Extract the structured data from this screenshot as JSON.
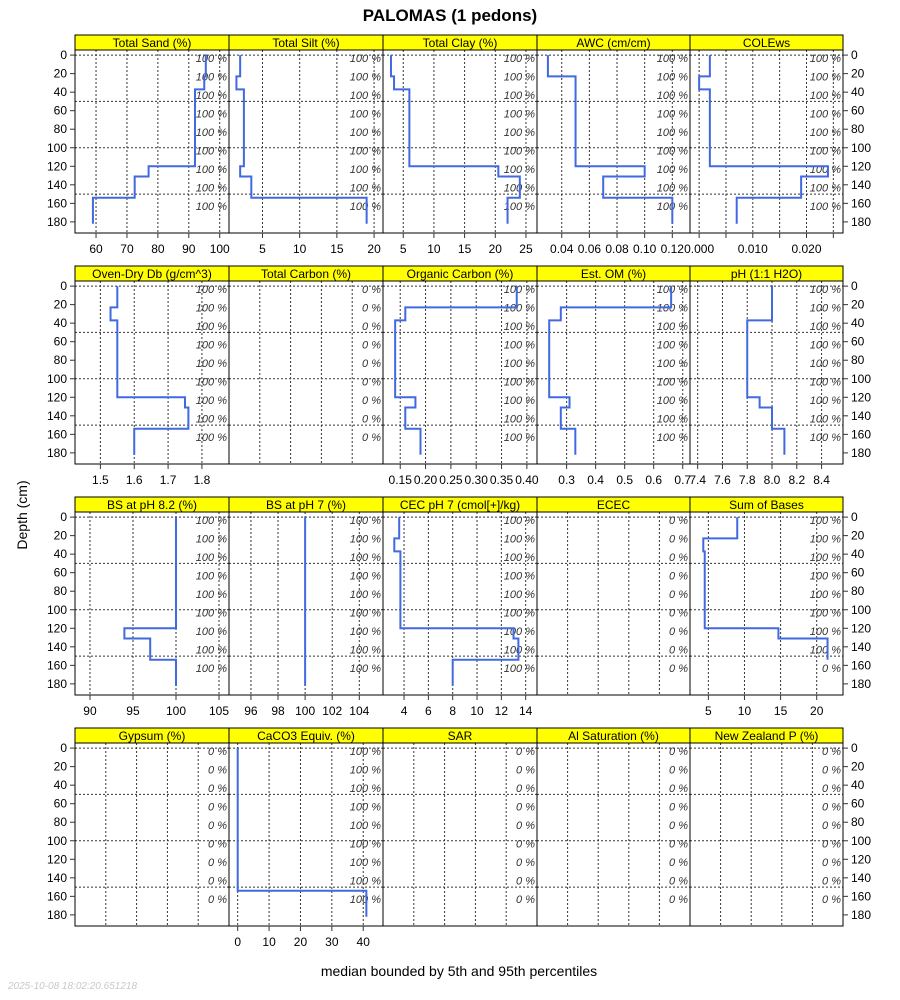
{
  "chart_data": {
    "type": "line",
    "title": "PALOMAS (1 pedons)",
    "xlabel": "median bounded by 5th and 95th percentiles",
    "ylabel": "Depth (cm)",
    "timestamp": "2025-10-08 18:02:20.651218",
    "ylim": [
      192,
      -5.5
    ],
    "depth_ticks": [
      0,
      20,
      40,
      60,
      80,
      100,
      120,
      140,
      160,
      180
    ],
    "depth_grid": [
      0,
      50,
      100,
      150
    ],
    "horizons": [
      [
        0,
        23
      ],
      [
        23,
        37
      ],
      [
        37,
        120
      ],
      [
        120,
        131
      ],
      [
        131,
        154
      ],
      [
        154,
        182
      ]
    ],
    "line_color": "#4169E1",
    "strip_color": "#FFFF00",
    "panels": [
      {
        "name": "Total Sand (%)",
        "xlim": [
          53.2,
          103
        ],
        "ticks": [
          60,
          70,
          80,
          90,
          100
        ],
        "tick_labels": [
          "60",
          "70",
          "80",
          "90",
          "100"
        ],
        "values": [
          95.5,
          95,
          92,
          77,
          72.5,
          59
        ],
        "completeness": [
          "100 %",
          "100 %",
          "100 %",
          "100 %",
          "100 %",
          "100 %",
          "100 %",
          "100 %",
          "100 %"
        ]
      },
      {
        "name": "Total Silt (%)",
        "xlim": [
          0.5,
          21.2
        ],
        "ticks": [
          5,
          10,
          15,
          20
        ],
        "tick_labels": [
          "5",
          "10",
          "15",
          "20"
        ],
        "values": [
          2,
          1.5,
          2.5,
          2,
          3.5,
          19
        ],
        "completeness": [
          "100 %",
          "100 %",
          "100 %",
          "100 %",
          "100 %",
          "100 %",
          "100 %",
          "100 %",
          "100 %"
        ]
      },
      {
        "name": "Total Clay (%)",
        "xlim": [
          1.7,
          26.8
        ],
        "ticks": [
          5,
          10,
          15,
          20,
          25
        ],
        "tick_labels": [
          "5",
          "10",
          "15",
          "20",
          "25"
        ],
        "values": [
          3,
          3.5,
          6,
          20.5,
          24,
          22
        ],
        "completeness": [
          "100 %",
          "100 %",
          "100 %",
          "100 %",
          "100 %",
          "100 %",
          "100 %",
          "100 %",
          "100 %"
        ]
      },
      {
        "name": "AWC (cm/cm)",
        "xlim": [
          0.0221,
          0.1328
        ],
        "ticks": [
          0.04,
          0.06,
          0.08,
          0.1,
          0.12
        ],
        "tick_labels": [
          "0.04",
          "0.06",
          "0.08",
          "0.10",
          "0.12"
        ],
        "values": [
          0.03,
          0.05,
          0.05,
          0.1,
          0.07,
          0.12
        ],
        "completeness": [
          "100 %",
          "100 %",
          "100 %",
          "100 %",
          "100 %",
          "100 %",
          "100 %",
          "100 %",
          "100 %"
        ]
      },
      {
        "name": "COLEws",
        "xlim": [
          -0.0017,
          0.0268
        ],
        "ticks": [
          0,
          0.005,
          0.01,
          0.015,
          0.02,
          0.025
        ],
        "tick_labels": [
          "0.000",
          "",
          "0.010",
          "",
          "0.020",
          ""
        ],
        "values": [
          0.002,
          0.0,
          0.002,
          0.024,
          0.019,
          0.007
        ],
        "completeness": [
          "100 %",
          "100 %",
          "100 %",
          "100 %",
          "100 %",
          "100 %",
          "100 %",
          "100 %",
          "100 %"
        ]
      },
      {
        "name": "Oven-Dry Db (g/cm^3)",
        "xlim": [
          1.425,
          1.88
        ],
        "ticks": [
          1.5,
          1.6,
          1.7,
          1.8
        ],
        "tick_labels": [
          "1.5",
          "1.6",
          "1.7",
          "1.8"
        ],
        "values": [
          1.55,
          1.53,
          1.55,
          1.75,
          1.76,
          1.6
        ],
        "completeness": [
          "100 %",
          "100 %",
          "100 %",
          "100 %",
          "100 %",
          "100 %",
          "100 %",
          "100 %",
          "100 %"
        ]
      },
      {
        "name": "Total Carbon (%)",
        "xlim": [
          0,
          1
        ],
        "ticks": [
          0.2,
          0.4,
          0.6,
          0.8
        ],
        "tick_labels": [],
        "values": [
          null,
          null,
          null,
          null,
          null,
          null
        ],
        "completeness": [
          "0 %",
          "0 %",
          "0 %",
          "0 %",
          "0 %",
          "0 %",
          "0 %",
          "0 %",
          "0 %"
        ]
      },
      {
        "name": "Organic Carbon (%)",
        "xlim": [
          0.116,
          0.42
        ],
        "ticks": [
          0.15,
          0.2,
          0.25,
          0.3,
          0.35,
          0.4
        ],
        "tick_labels": [
          "0.15",
          "0.20",
          "0.25",
          "0.30",
          "0.35",
          "0.40"
        ],
        "values": [
          0.38,
          0.16,
          0.14,
          0.18,
          0.16,
          0.19
        ],
        "completeness": [
          "100 %",
          "100 %",
          "100 %",
          "100 %",
          "100 %",
          "100 %",
          "100 %",
          "100 %",
          "100 %"
        ]
      },
      {
        "name": "Est. OM (%)",
        "xlim": [
          0.198,
          0.725
        ],
        "ticks": [
          0.3,
          0.4,
          0.5,
          0.6,
          0.7
        ],
        "tick_labels": [
          "0.3",
          "0.4",
          "0.5",
          "0.6",
          "0.7"
        ],
        "values": [
          0.66,
          0.28,
          0.24,
          0.31,
          0.28,
          0.33
        ],
        "completeness": [
          "100 %",
          "100 %",
          "100 %",
          "100 %",
          "100 %",
          "100 %",
          "100 %",
          "100 %",
          "100 %"
        ]
      },
      {
        "name": "pH (1:1 H2O)",
        "xlim": [
          7.338,
          8.573
        ],
        "ticks": [
          7.4,
          7.6,
          7.8,
          8.0,
          8.2,
          8.4
        ],
        "tick_labels": [
          "7.4",
          "7.6",
          "7.8",
          "8.0",
          "8.2",
          "8.4"
        ],
        "values": [
          8.0,
          8.0,
          7.8,
          7.9,
          8.0,
          8.1
        ],
        "completeness": [
          "100 %",
          "100 %",
          "100 %",
          "100 %",
          "100 %",
          "100 %",
          "100 %",
          "100 %",
          "100 %"
        ]
      },
      {
        "name": "BS at pH 8.2 (%)",
        "xlim": [
          88.26,
          106.16
        ],
        "ticks": [
          90,
          95,
          100,
          105
        ],
        "tick_labels": [
          "90",
          "95",
          "100",
          "105"
        ],
        "values": [
          100,
          100,
          100,
          94,
          97,
          100
        ],
        "completeness": [
          "100 %",
          "100 %",
          "100 %",
          "100 %",
          "100 %",
          "100 %",
          "100 %",
          "100 %",
          "100 %"
        ]
      },
      {
        "name": "BS at pH 7 (%)",
        "xlim": [
          94.38,
          105.75
        ],
        "ticks": [
          96,
          98,
          100,
          102,
          104
        ],
        "tick_labels": [
          "96",
          "98",
          "100",
          "102",
          "104"
        ],
        "values": [
          100,
          100,
          100,
          100,
          100,
          100
        ],
        "completeness": [
          "100 %",
          "100 %",
          "100 %",
          "100 %",
          "100 %",
          "100 %",
          "100 %",
          "100 %",
          "100 %"
        ]
      },
      {
        "name": "CEC pH 7 (cmol[+]/kg)",
        "xlim": [
          2.27,
          14.93
        ],
        "ticks": [
          4,
          6,
          8,
          10,
          12,
          14
        ],
        "tick_labels": [
          "4",
          "6",
          "8",
          "10",
          "12",
          "14"
        ],
        "values": [
          3.6,
          3.2,
          3.7,
          13.0,
          13.4,
          8.0
        ],
        "completeness": [
          "100 %",
          "100 %",
          "100 %",
          "100 %",
          "100 %",
          "100 %",
          "100 %",
          "100 %",
          "100 %"
        ]
      },
      {
        "name": "ECEC",
        "xlim": [
          0,
          1
        ],
        "ticks": [
          0.2,
          0.4,
          0.6,
          0.8
        ],
        "tick_labels": [],
        "values": [
          null,
          null,
          null,
          null,
          null,
          null
        ],
        "completeness": [
          "0 %",
          "0 %",
          "0 %",
          "0 %",
          "0 %",
          "0 %",
          "0 %",
          "0 %",
          "0 %"
        ]
      },
      {
        "name": "Sum of Bases",
        "xlim": [
          2.46,
          23.64
        ],
        "ticks": [
          5,
          10,
          15,
          20
        ],
        "tick_labels": [
          "5",
          "10",
          "15",
          "20"
        ],
        "values": [
          9,
          4.3,
          4.5,
          14.7,
          21.5,
          null
        ],
        "completeness": [
          "100 %",
          "100 %",
          "100 %",
          "100 %",
          "100 %",
          "100 %",
          "100 %",
          "100 %",
          "0 %"
        ]
      },
      {
        "name": "Gypsum (%)",
        "xlim": [
          0,
          1
        ],
        "ticks": [
          0.2,
          0.4,
          0.6,
          0.8
        ],
        "tick_labels": [],
        "values": [
          null,
          null,
          null,
          null,
          null,
          null
        ],
        "completeness": [
          "0 %",
          "0 %",
          "0 %",
          "0 %",
          "0 %",
          "0 %",
          "0 %",
          "0 %",
          "0 %"
        ]
      },
      {
        "name": "CaCO3 Equiv. (%)",
        "xlim": [
          -2.77,
          46.3
        ],
        "ticks": [
          0,
          10,
          20,
          30,
          40
        ],
        "tick_labels": [
          "0",
          "10",
          "20",
          "30",
          "40"
        ],
        "values": [
          0,
          0,
          0,
          0,
          0,
          41
        ],
        "completeness": [
          "100 %",
          "100 %",
          "100 %",
          "100 %",
          "100 %",
          "100 %",
          "100 %",
          "100 %",
          "100 %"
        ]
      },
      {
        "name": "SAR",
        "xlim": [
          0,
          1
        ],
        "ticks": [
          0.2,
          0.4,
          0.6,
          0.8
        ],
        "tick_labels": [],
        "values": [
          null,
          null,
          null,
          null,
          null,
          null
        ],
        "completeness": [
          "0 %",
          "0 %",
          "0 %",
          "0 %",
          "0 %",
          "0 %",
          "0 %",
          "0 %",
          "0 %"
        ]
      },
      {
        "name": "Al Saturation (%)",
        "xlim": [
          0,
          1
        ],
        "ticks": [
          0.2,
          0.4,
          0.6,
          0.8
        ],
        "tick_labels": [],
        "values": [
          null,
          null,
          null,
          null,
          null,
          null
        ],
        "completeness": [
          "0 %",
          "0 %",
          "0 %",
          "0 %",
          "0 %",
          "0 %",
          "0 %",
          "0 %",
          "0 %"
        ]
      },
      {
        "name": "New Zealand P (%)",
        "xlim": [
          0,
          1
        ],
        "ticks": [
          0.2,
          0.4,
          0.6,
          0.8
        ],
        "tick_labels": [],
        "values": [
          null,
          null,
          null,
          null,
          null,
          null
        ],
        "completeness": [
          "0 %",
          "0 %",
          "0 %",
          "0 %",
          "0 %",
          "0 %",
          "0 %",
          "0 %",
          "0 %"
        ]
      }
    ]
  }
}
